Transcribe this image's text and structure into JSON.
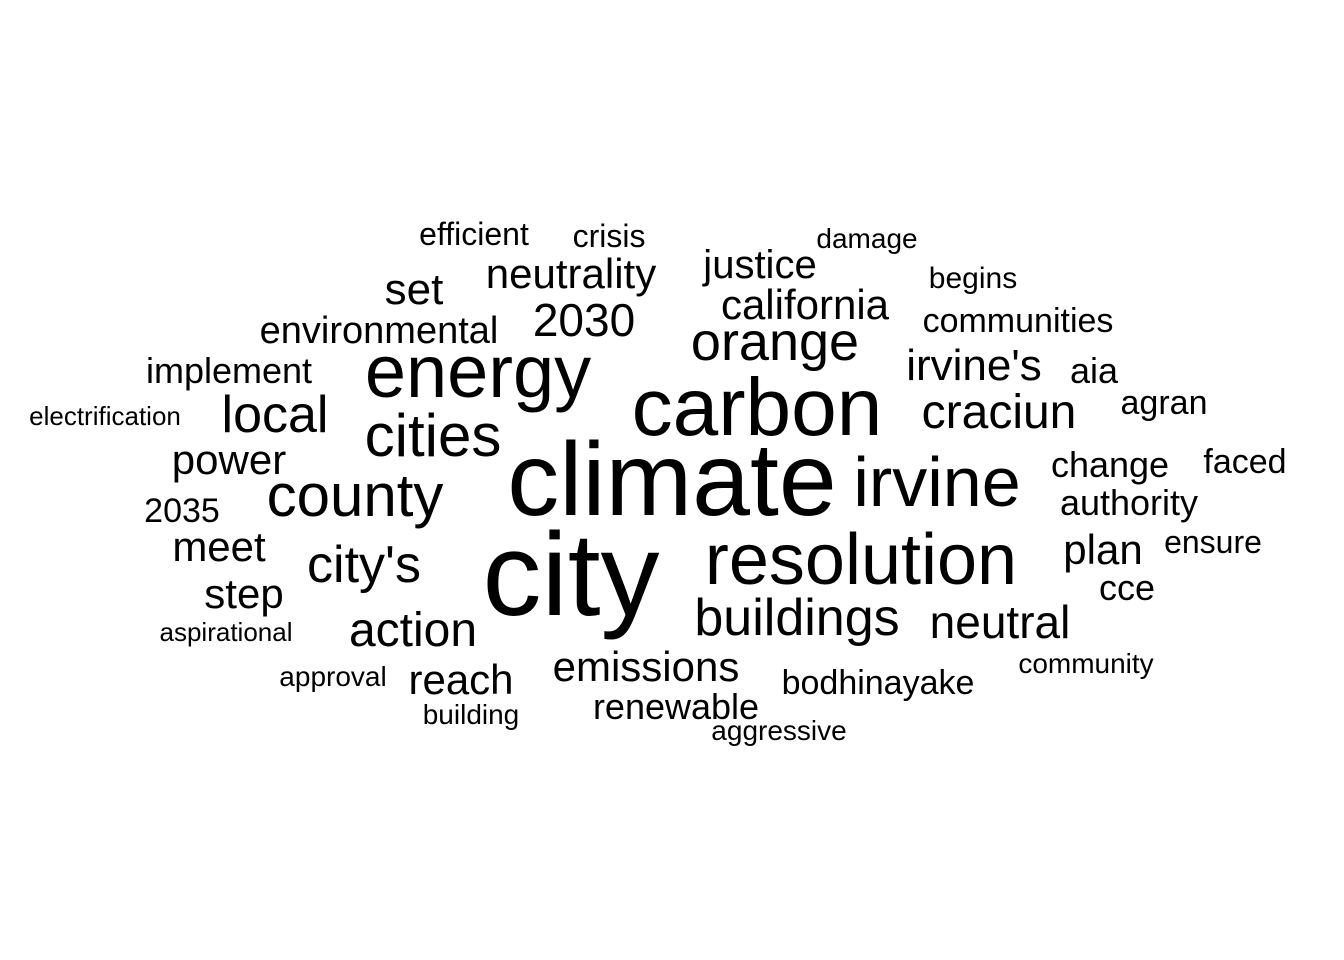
{
  "cloud": {
    "text_color": "#000000",
    "background": "#ffffff",
    "words": {
      "city": "city",
      "climate": "climate",
      "carbon": "carbon",
      "energy": "energy",
      "resolution": "resolution",
      "irvine": "irvine",
      "cities": "cities",
      "county": "county",
      "buildings": "buildings",
      "orange": "orange",
      "local": "local",
      "cities_possessive": "city's",
      "action": "action",
      "cracium": "craciun",
      "irvines": "irvine's",
      "neutral": "neutral",
      "year_2030": "2030",
      "neutrality": "neutrality",
      "california": "california",
      "emissions": "emissions",
      "plan": "plan",
      "power": "power",
      "set": "set",
      "meet": "meet",
      "step": "step",
      "justice": "justice",
      "environmental": "environmental",
      "reach": "reach",
      "change": "change",
      "authority": "authority",
      "implement": "implement",
      "renewable": "renewable",
      "bodhinayake": "bodhinayake",
      "communities": "communities",
      "aia": "aia",
      "cce": "cce",
      "agran": "agran",
      "faced": "faced",
      "year_2035": "2035",
      "ensure": "ensure",
      "crisis": "crisis",
      "efficient": "efficient",
      "begins": "begins",
      "damage": "damage",
      "electrification": "electrification",
      "approval": "approval",
      "aspirational": "aspirational",
      "building": "building",
      "community": "community",
      "aggressive": "aggressive"
    }
  }
}
